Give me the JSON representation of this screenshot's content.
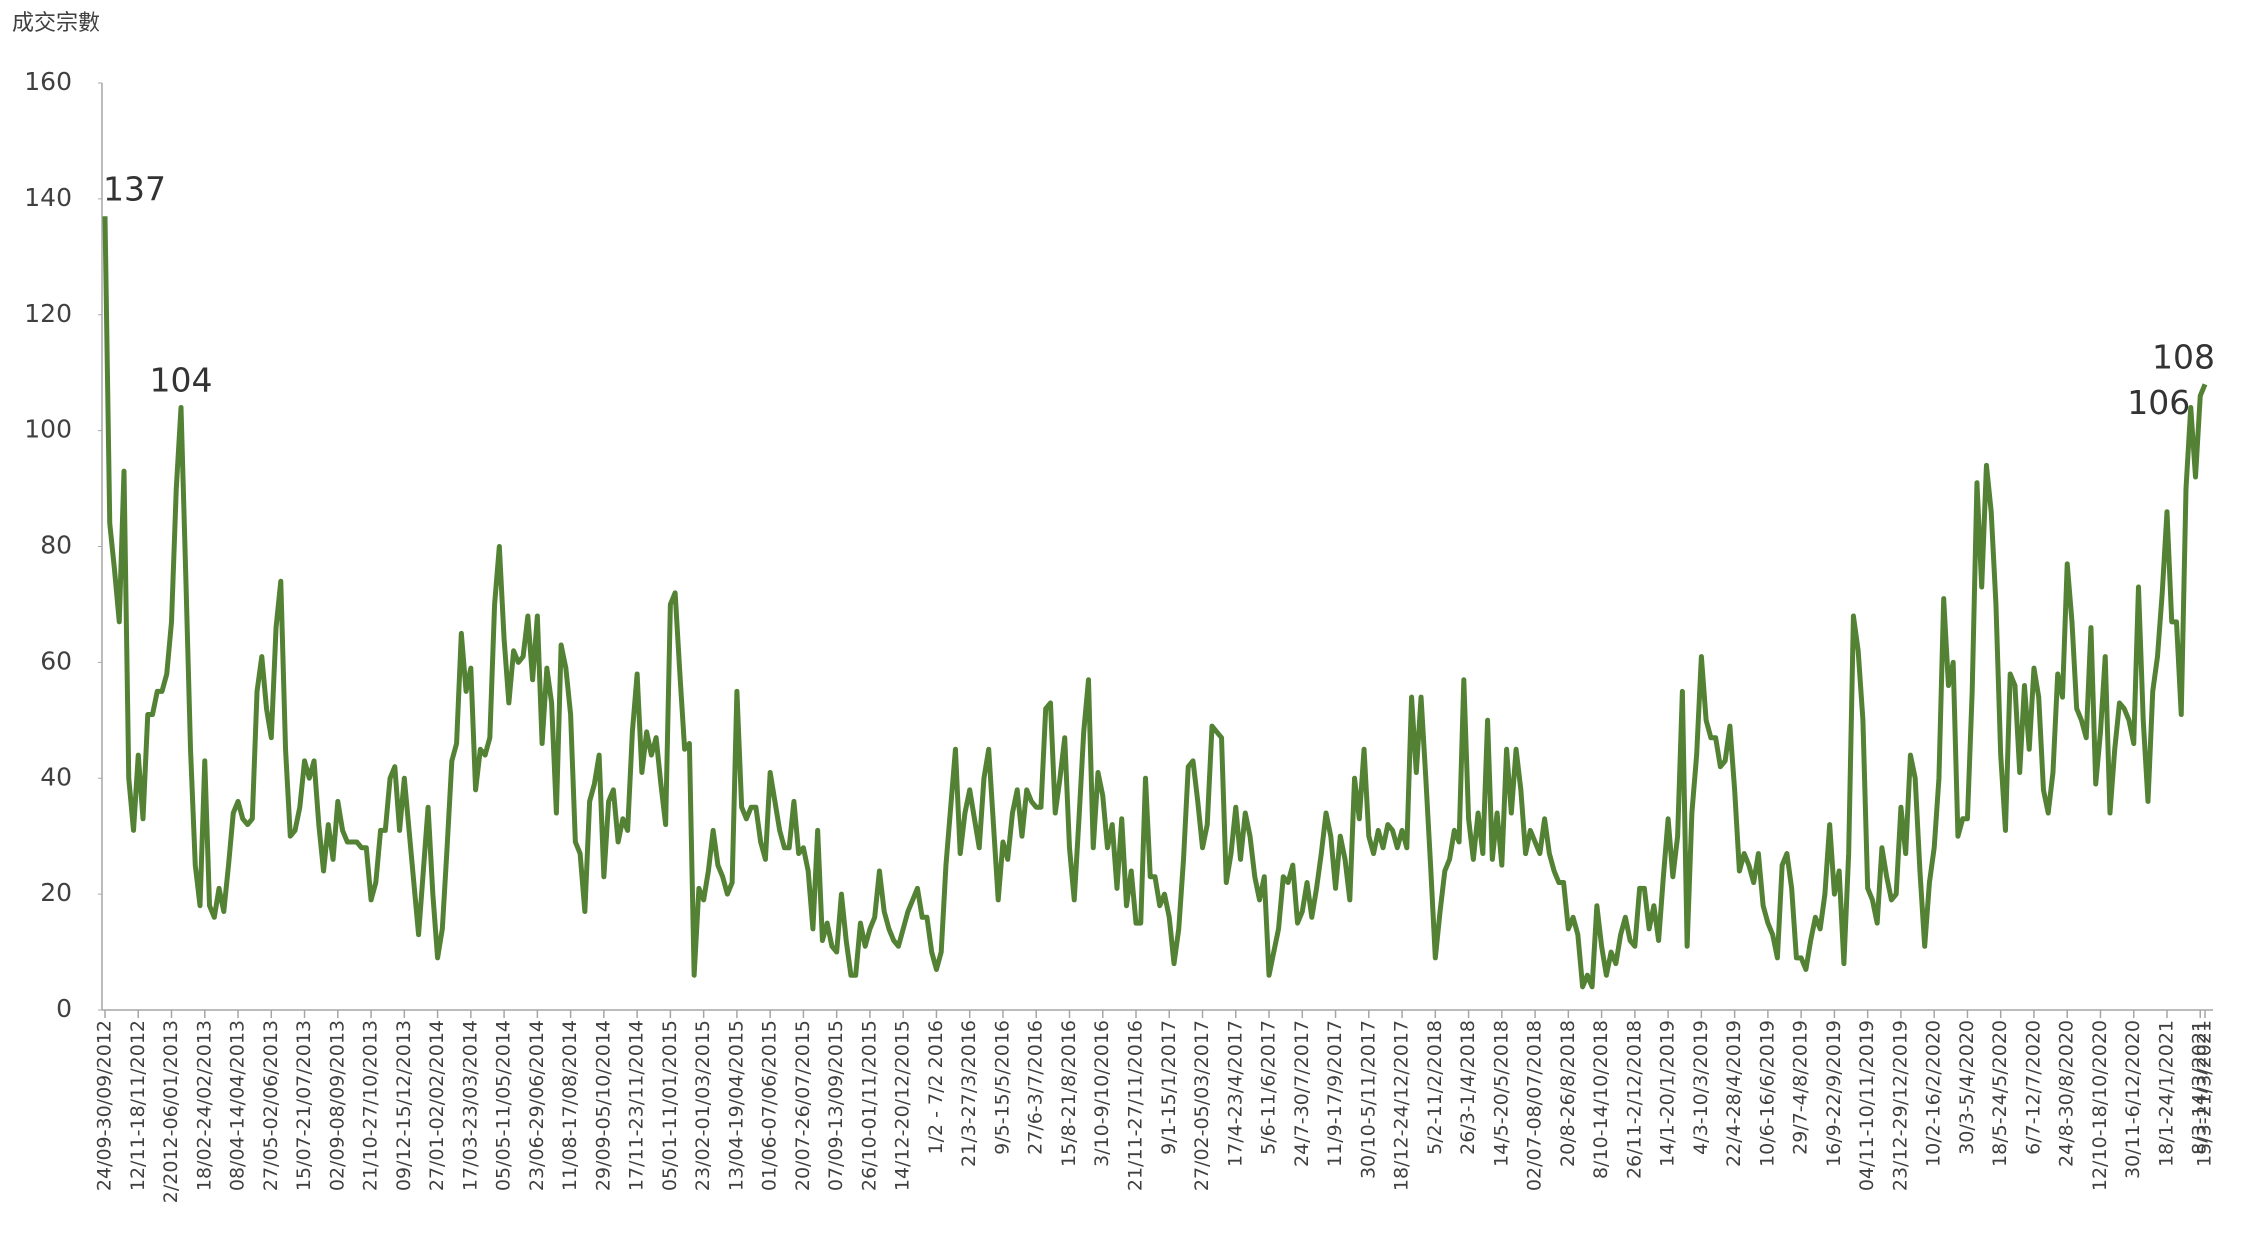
{
  "chart_data": {
    "type": "line",
    "y_axis_title": "成交宗數",
    "color": "#548235",
    "ylim": [
      0,
      160
    ],
    "yticks": [
      0,
      20,
      40,
      60,
      80,
      100,
      120,
      140,
      160
    ],
    "categories": [
      "24/09-30/09/2012",
      null,
      null,
      null,
      null,
      null,
      null,
      "12/11-18/11/2012",
      null,
      null,
      null,
      null,
      null,
      null,
      "2/2012-06/01/2013",
      null,
      null,
      null,
      null,
      null,
      null,
      "18/02-24/02/2013",
      null,
      null,
      null,
      null,
      null,
      null,
      "08/04-14/04/2013",
      null,
      null,
      null,
      null,
      null,
      null,
      "27/05-02/06/2013",
      null,
      null,
      null,
      null,
      null,
      null,
      "15/07-21/07/2013",
      null,
      null,
      null,
      null,
      null,
      null,
      "02/09-08/09/2013",
      null,
      null,
      null,
      null,
      null,
      null,
      "21/10-27/10/2013",
      null,
      null,
      null,
      null,
      null,
      null,
      "09/12-15/12/2013",
      null,
      null,
      null,
      null,
      null,
      null,
      "27/01-02/02/2014",
      null,
      null,
      null,
      null,
      null,
      null,
      "17/03-23/03/2014",
      null,
      null,
      null,
      null,
      null,
      null,
      "05/05-11/05/2014",
      null,
      null,
      null,
      null,
      null,
      null,
      "23/06-29/06/2014",
      null,
      null,
      null,
      null,
      null,
      null,
      "11/08-17/08/2014",
      null,
      null,
      null,
      null,
      null,
      null,
      "29/09-05/10/2014",
      null,
      null,
      null,
      null,
      null,
      null,
      "17/11-23/11/2014",
      null,
      null,
      null,
      null,
      null,
      null,
      "05/01-11/01/2015",
      null,
      null,
      null,
      null,
      null,
      null,
      "23/02-01/03/2015",
      null,
      null,
      null,
      null,
      null,
      null,
      "13/04-19/04/2015",
      null,
      null,
      null,
      null,
      null,
      null,
      "01/06-07/06/2015",
      null,
      null,
      null,
      null,
      null,
      null,
      "20/07-26/07/2015",
      null,
      null,
      null,
      null,
      null,
      null,
      "07/09-13/09/2015",
      null,
      null,
      null,
      null,
      null,
      null,
      "26/10-01/11/2015",
      null,
      null,
      null,
      null,
      null,
      null,
      "14/12-20/12/2015",
      null,
      null,
      null,
      null,
      null,
      null,
      "1/2 - 7/2 2016",
      null,
      null,
      null,
      null,
      null,
      null,
      "21/3-27/3/2016",
      null,
      null,
      null,
      null,
      null,
      null,
      "9/5-15/5/2016",
      null,
      null,
      null,
      null,
      null,
      null,
      "27/6-3/7/2016",
      null,
      null,
      null,
      null,
      null,
      null,
      "15/8-21/8/2016",
      null,
      null,
      null,
      null,
      null,
      null,
      "3/10-9/10/2016",
      null,
      null,
      null,
      null,
      null,
      null,
      "21/11-27/11/2016",
      null,
      null,
      null,
      null,
      null,
      null,
      "9/1-15/1/2017",
      null,
      null,
      null,
      null,
      null,
      null,
      "27/02-05/03/2017",
      null,
      null,
      null,
      null,
      null,
      null,
      "17/4-23/4/2017",
      null,
      null,
      null,
      null,
      null,
      null,
      "5/6-11/6/2017",
      null,
      null,
      null,
      null,
      null,
      null,
      "24/7-30/7/2017",
      null,
      null,
      null,
      null,
      null,
      null,
      "11/9-17/9/2017",
      null,
      null,
      null,
      null,
      null,
      null,
      "30/10-5/11/2017",
      null,
      null,
      null,
      null,
      null,
      null,
      "18/12-24/12/2017",
      null,
      null,
      null,
      null,
      null,
      null,
      "5/2-11/2/2018",
      null,
      null,
      null,
      null,
      null,
      null,
      "26/3-1/4/2018",
      null,
      null,
      null,
      null,
      null,
      null,
      "14/5-20/5/2018",
      null,
      null,
      null,
      null,
      null,
      null,
      "02/07-08/07/2018",
      null,
      null,
      null,
      null,
      null,
      null,
      "20/8-26/8/2018",
      null,
      null,
      null,
      null,
      null,
      null,
      "8/10-14/10/2018",
      null,
      null,
      null,
      null,
      null,
      null,
      "26/11-2/12/2018",
      null,
      null,
      null,
      null,
      null,
      null,
      "14/1-20/1/2019",
      null,
      null,
      null,
      null,
      null,
      null,
      "4/3-10/3/2019",
      null,
      null,
      null,
      null,
      null,
      null,
      "22/4-28/4/2019",
      null,
      null,
      null,
      null,
      null,
      null,
      "10/6-16/6/2019",
      null,
      null,
      null,
      null,
      null,
      null,
      "29/7-4/8/2019",
      null,
      null,
      null,
      null,
      null,
      null,
      "16/9-22/9/2019",
      null,
      null,
      null,
      null,
      null,
      null,
      "04/11-10/11/2019",
      null,
      null,
      null,
      null,
      null,
      null,
      "23/12-29/12/2019",
      null,
      null,
      null,
      null,
      null,
      null,
      "10/2-16/2/2020",
      null,
      null,
      null,
      null,
      null,
      null,
      "30/3-5/4/2020",
      null,
      null,
      null,
      null,
      null,
      null,
      "18/5-24/5/2020",
      null,
      null,
      null,
      null,
      null,
      null,
      "6/7-12/7/2020",
      null,
      null,
      null,
      null,
      null,
      null,
      "24/8-30/8/2020",
      null,
      null,
      null,
      null,
      null,
      null,
      "12/10-18/10/2020",
      null,
      null,
      null,
      null,
      null,
      null,
      "30/11-6/12/2020",
      null,
      null,
      null,
      null,
      null,
      null,
      "18/1-24/1/2021",
      null,
      null,
      null,
      null,
      null,
      null,
      "8/3-14/3/2021",
      "15/3-21/3/2021"
    ],
    "values": [
      137,
      84,
      76,
      67,
      93,
      40,
      31,
      44,
      33,
      51,
      51,
      55,
      55,
      58,
      67,
      90,
      104,
      75,
      45,
      25,
      18,
      43,
      18,
      16,
      21,
      17,
      25,
      34,
      36,
      33,
      32,
      33,
      55,
      61,
      52,
      47,
      66,
      74,
      45,
      30,
      31,
      35,
      43,
      40,
      43,
      32,
      24,
      32,
      26,
      36,
      31,
      29,
      29,
      29,
      28,
      28,
      19,
      22,
      31,
      31,
      40,
      42,
      31,
      40,
      31,
      22,
      13,
      24,
      35,
      20,
      9,
      14,
      28,
      43,
      46,
      65,
      55,
      59,
      38,
      45,
      44,
      47,
      70,
      80,
      64,
      53,
      62,
      60,
      61,
      68,
      57,
      68,
      46,
      59,
      53,
      34,
      63,
      59,
      51,
      29,
      27,
      17,
      36,
      39,
      44,
      23,
      36,
      38,
      29,
      33,
      31,
      48,
      58,
      41,
      48,
      44,
      47,
      39,
      32,
      70,
      72,
      58,
      45,
      46,
      6,
      21,
      19,
      24,
      31,
      25,
      23,
      20,
      22,
      55,
      35,
      33,
      35,
      35,
      29,
      26,
      41,
      36,
      31,
      28,
      28,
      36,
      27,
      28,
      24,
      14,
      31,
      12,
      15,
      11,
      10,
      20,
      12,
      6,
      6,
      15,
      11,
      14,
      16,
      24,
      17,
      14,
      12,
      11,
      14,
      17,
      19,
      21,
      16,
      16,
      10,
      7,
      10,
      25,
      35,
      45,
      27,
      34,
      38,
      33,
      28,
      40,
      45,
      32,
      19,
      29,
      26,
      34,
      38,
      30,
      38,
      36,
      35,
      35,
      52,
      53,
      34,
      40,
      47,
      28,
      19,
      33,
      48,
      57,
      28,
      41,
      37,
      28,
      32,
      21,
      33,
      18,
      24,
      15,
      15,
      40,
      23,
      23,
      18,
      20,
      16,
      8,
      14,
      26,
      42,
      43,
      36,
      28,
      32,
      49,
      48,
      47,
      22,
      27,
      35,
      26,
      34,
      30,
      23,
      19,
      23,
      6,
      10,
      14,
      23,
      22,
      25,
      15,
      17,
      22,
      16,
      21,
      27,
      34,
      30,
      21,
      30,
      26,
      19,
      40,
      33,
      45,
      30,
      27,
      31,
      28,
      32,
      31,
      28,
      31,
      28,
      54,
      41,
      54,
      40,
      25,
      9,
      17,
      24,
      26,
      31,
      29,
      57,
      33,
      26,
      34,
      27,
      50,
      26,
      34,
      25,
      45,
      34,
      45,
      38,
      27,
      31,
      29,
      27,
      33,
      27,
      24,
      22,
      22,
      14,
      16,
      13,
      4,
      6,
      4,
      18,
      11,
      6,
      10,
      8,
      13,
      16,
      12,
      11,
      21,
      21,
      14,
      18,
      12,
      23,
      33,
      23,
      30,
      55,
      11,
      34,
      44,
      61,
      50,
      47,
      47,
      42,
      43,
      49,
      38,
      24,
      27,
      25,
      22,
      27,
      18,
      15,
      13,
      9,
      25,
      27,
      21,
      9,
      9,
      7,
      12,
      16,
      14,
      20,
      32,
      20,
      24,
      8,
      27,
      68,
      62,
      50,
      21,
      19,
      15,
      28,
      23,
      19,
      20,
      35,
      27,
      44,
      40,
      24,
      11,
      22,
      28,
      40,
      71,
      56,
      60,
      30,
      33,
      33,
      55,
      91,
      73,
      94,
      86,
      70,
      44,
      31,
      58,
      56,
      41,
      56,
      45,
      59,
      54,
      38,
      34,
      41,
      58,
      54,
      77,
      67,
      52,
      50,
      47,
      66,
      39,
      48,
      61,
      34,
      45,
      53,
      52,
      50,
      46,
      73,
      50,
      36,
      55,
      61,
      72,
      86,
      67,
      67,
      51,
      90,
      104,
      92,
      106,
      108
    ],
    "value_labels": [
      "137",
      null,
      null,
      null,
      null,
      null,
      null,
      null,
      null,
      null,
      null,
      null,
      null,
      null,
      null,
      null,
      "104",
      null,
      null,
      null,
      null,
      null,
      null,
      null,
      null,
      null,
      null,
      null,
      null,
      null,
      null,
      null,
      null,
      null,
      null,
      null,
      null,
      null,
      null,
      null,
      null,
      null,
      null,
      null,
      null,
      null,
      null,
      null,
      null,
      null,
      null,
      null,
      null,
      null,
      null,
      null,
      null,
      null,
      null,
      null,
      null,
      null,
      null,
      null,
      null,
      null,
      null,
      null,
      null,
      null,
      null,
      null,
      null,
      null,
      null,
      null,
      null,
      null,
      null,
      null,
      null,
      null,
      null,
      null,
      null,
      null,
      null,
      null,
      null,
      null,
      null,
      null,
      null,
      null,
      null,
      null,
      null,
      null,
      null,
      null,
      null,
      null,
      null,
      null,
      null,
      null,
      null,
      null,
      null,
      null,
      null,
      null,
      null,
      null,
      null,
      null,
      null,
      null,
      null,
      null,
      null,
      null,
      null,
      null,
      null,
      null,
      null,
      null,
      null,
      null,
      null,
      null,
      null,
      null,
      null,
      null,
      null,
      null,
      null,
      null,
      null,
      null,
      null,
      null,
      null,
      null,
      null,
      null,
      null,
      null,
      null,
      null,
      null,
      null,
      null,
      null,
      null,
      null,
      null,
      null,
      null,
      null,
      null,
      null,
      null,
      null,
      null,
      null,
      null,
      null,
      null,
      null,
      null,
      null,
      null,
      null,
      null,
      null,
      null,
      null,
      null,
      null,
      null,
      null,
      null,
      null,
      null,
      null,
      null,
      null,
      null,
      null,
      null,
      null,
      null,
      null,
      null,
      null,
      null,
      null,
      null,
      null,
      null,
      null,
      null,
      null,
      null,
      null,
      null,
      null,
      null,
      null,
      null,
      null,
      null,
      null,
      null,
      null,
      null,
      null,
      null,
      null,
      null,
      null,
      null,
      null,
      null,
      null,
      null,
      null,
      null,
      null,
      null,
      null,
      null,
      null,
      null,
      null,
      null,
      null,
      null,
      null,
      null,
      null,
      null,
      null,
      null,
      null,
      null,
      null,
      null,
      null,
      null,
      null,
      null,
      null,
      null,
      null,
      null,
      null,
      null,
      null,
      null,
      null,
      null,
      null,
      null,
      null,
      null,
      null,
      null,
      null,
      null,
      null,
      null,
      null,
      null,
      null,
      null,
      null,
      null,
      null,
      null,
      null,
      null,
      null,
      null,
      null,
      null,
      null,
      null,
      null,
      null,
      null,
      null,
      null,
      null,
      null,
      null,
      null,
      null,
      null,
      null,
      null,
      null,
      null,
      null,
      null,
      null,
      null,
      null,
      null,
      null,
      null,
      null,
      null,
      null,
      null,
      null,
      null,
      null,
      null,
      null,
      null,
      null,
      null,
      null,
      null,
      null,
      null,
      null,
      null,
      null,
      null,
      null,
      null,
      null,
      null,
      null,
      null,
      null,
      null,
      null,
      null,
      null,
      null,
      null,
      null,
      null,
      null,
      null,
      null,
      null,
      null,
      null,
      null,
      null,
      null,
      null,
      null,
      null,
      null,
      null,
      null,
      null,
      null,
      null,
      null,
      null,
      null,
      null,
      null,
      null,
      null,
      null,
      null,
      null,
      null,
      null,
      null,
      null,
      null,
      null,
      null,
      null,
      null,
      null,
      null,
      null,
      null,
      null,
      null,
      null,
      null,
      null,
      null,
      null,
      null,
      null,
      null,
      null,
      null,
      null,
      null,
      null,
      null,
      null,
      null,
      null,
      null,
      null,
      null,
      null,
      null,
      null,
      null,
      null,
      null,
      null,
      null,
      null,
      null,
      null,
      null,
      null,
      null,
      null,
      null,
      null,
      null,
      null,
      null,
      null,
      null,
      null,
      null,
      null,
      null,
      null,
      null,
      null,
      "106",
      "108"
    ]
  }
}
